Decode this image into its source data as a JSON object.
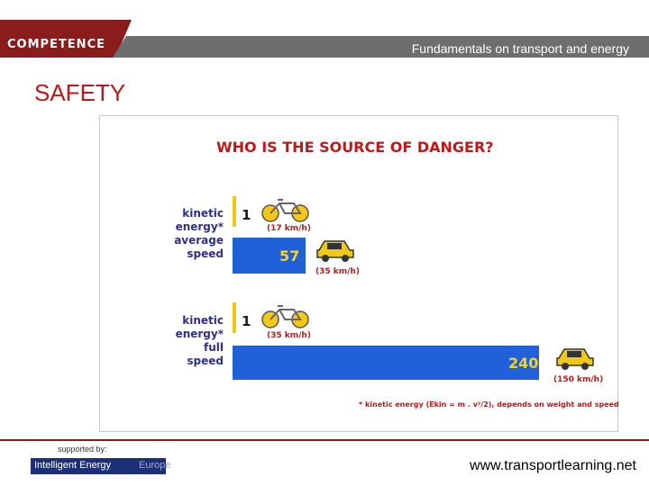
{
  "header": {
    "brand": "COMPETENCE",
    "subtitle": "Fundamentals on transport and energy"
  },
  "page_title": "SAFETY",
  "chart_data": {
    "type": "bar",
    "title": "WHO IS THE SOURCE OF DANGER?",
    "groups": [
      {
        "label_lines": [
          "kinetic",
          "energy*",
          "average",
          "speed"
        ],
        "bicycle": {
          "value": 1,
          "speed_label": "(17 km/h)"
        },
        "car": {
          "value": 57,
          "speed_label": "(35 km/h)"
        }
      },
      {
        "label_lines": [
          "kinetic",
          "energy*",
          "full",
          "speed"
        ],
        "bicycle": {
          "value": 1,
          "speed_label": "(35 km/h)"
        },
        "car": {
          "value": 240,
          "speed_label": "(150 km/h)"
        }
      }
    ],
    "footnote": "* kinetic energy (Ekin = m . v²/2), depends on weight and speed",
    "colors": {
      "car_bar": "#2060d8",
      "bicycle_marker": "#f0c818",
      "value_text": "#ffd21e",
      "title": "#c01818",
      "labels": "#2f2f8a"
    }
  },
  "footer": {
    "supported_by": "supported by:",
    "sponsor_main": "Intelligent Energy",
    "sponsor_suffix": "Europe",
    "website": "www.transportlearning.net"
  }
}
